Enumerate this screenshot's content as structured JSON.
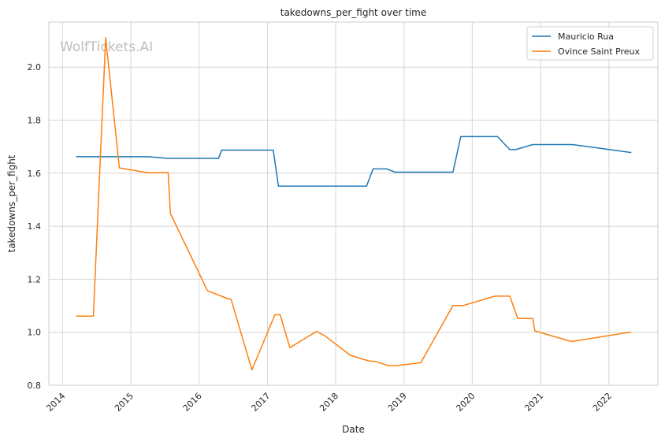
{
  "chart_data": {
    "type": "line",
    "title": "takedowns_per_fight over time",
    "xlabel": "Date",
    "ylabel": "takedowns_per_fight",
    "watermark": "WolfTickets.AI",
    "xlim": [
      "2013-10-20",
      "2022-09-20"
    ],
    "ylim": [
      0.8,
      2.17
    ],
    "x_ticks": [
      "2014-01-01",
      "2015-01-01",
      "2016-01-01",
      "2017-01-01",
      "2018-01-01",
      "2019-01-01",
      "2020-01-01",
      "2021-01-01",
      "2022-01-01"
    ],
    "x_tick_labels": [
      "2014",
      "2015",
      "2016",
      "2017",
      "2018",
      "2019",
      "2020",
      "2021",
      "2022"
    ],
    "y_ticks": [
      0.8,
      1.0,
      1.2,
      1.4,
      1.6,
      1.8,
      2.0
    ],
    "y_tick_labels": [
      "0.8",
      "1.0",
      "1.2",
      "1.4",
      "1.6",
      "1.8",
      "2.0"
    ],
    "grid": true,
    "legend": "top-right",
    "series": [
      {
        "name": "Mauricio Rua",
        "color": "#1f77b4",
        "points": [
          [
            "2014-03-15",
            1.662
          ],
          [
            "2015-04-01",
            1.662
          ],
          [
            "2015-07-20",
            1.656
          ],
          [
            "2016-04-15",
            1.656
          ],
          [
            "2016-05-01",
            1.687
          ],
          [
            "2017-02-01",
            1.687
          ],
          [
            "2017-03-01",
            1.551
          ],
          [
            "2018-06-15",
            1.551
          ],
          [
            "2018-07-20",
            1.616
          ],
          [
            "2018-10-01",
            1.616
          ],
          [
            "2018-11-15",
            1.604
          ],
          [
            "2019-09-20",
            1.604
          ],
          [
            "2019-11-01",
            1.738
          ],
          [
            "2020-05-15",
            1.738
          ],
          [
            "2020-07-20",
            1.689
          ],
          [
            "2020-08-20",
            1.689
          ],
          [
            "2020-11-20",
            1.708
          ],
          [
            "2021-06-20",
            1.708
          ],
          [
            "2022-05-01",
            1.678
          ]
        ]
      },
      {
        "name": "Ovince Saint Preux",
        "color": "#ff7f0e",
        "points": [
          [
            "2014-03-15",
            1.061
          ],
          [
            "2014-06-15",
            1.061
          ],
          [
            "2014-08-20",
            2.111
          ],
          [
            "2014-11-01",
            1.62
          ],
          [
            "2015-04-01",
            1.602
          ],
          [
            "2015-07-20",
            1.602
          ],
          [
            "2015-08-01",
            1.448
          ],
          [
            "2016-02-15",
            1.157
          ],
          [
            "2016-06-01",
            1.127
          ],
          [
            "2016-06-20",
            1.125
          ],
          [
            "2016-10-10",
            0.858
          ],
          [
            "2017-02-10",
            1.066
          ],
          [
            "2017-03-10",
            1.066
          ],
          [
            "2017-05-01",
            0.942
          ],
          [
            "2017-09-20",
            1.003
          ],
          [
            "2017-11-01",
            0.988
          ],
          [
            "2018-03-20",
            0.913
          ],
          [
            "2018-07-01",
            0.891
          ],
          [
            "2018-08-01",
            0.89
          ],
          [
            "2018-10-10",
            0.874
          ],
          [
            "2018-11-20",
            0.874
          ],
          [
            "2019-04-01",
            0.885
          ],
          [
            "2019-09-20",
            1.101
          ],
          [
            "2019-11-15",
            1.101
          ],
          [
            "2020-05-01",
            1.136
          ],
          [
            "2020-07-20",
            1.136
          ],
          [
            "2020-09-01",
            1.052
          ],
          [
            "2020-11-20",
            1.052
          ],
          [
            "2020-12-01",
            1.005
          ],
          [
            "2021-06-15",
            0.965
          ],
          [
            "2022-05-01",
            1.001
          ]
        ]
      }
    ]
  }
}
